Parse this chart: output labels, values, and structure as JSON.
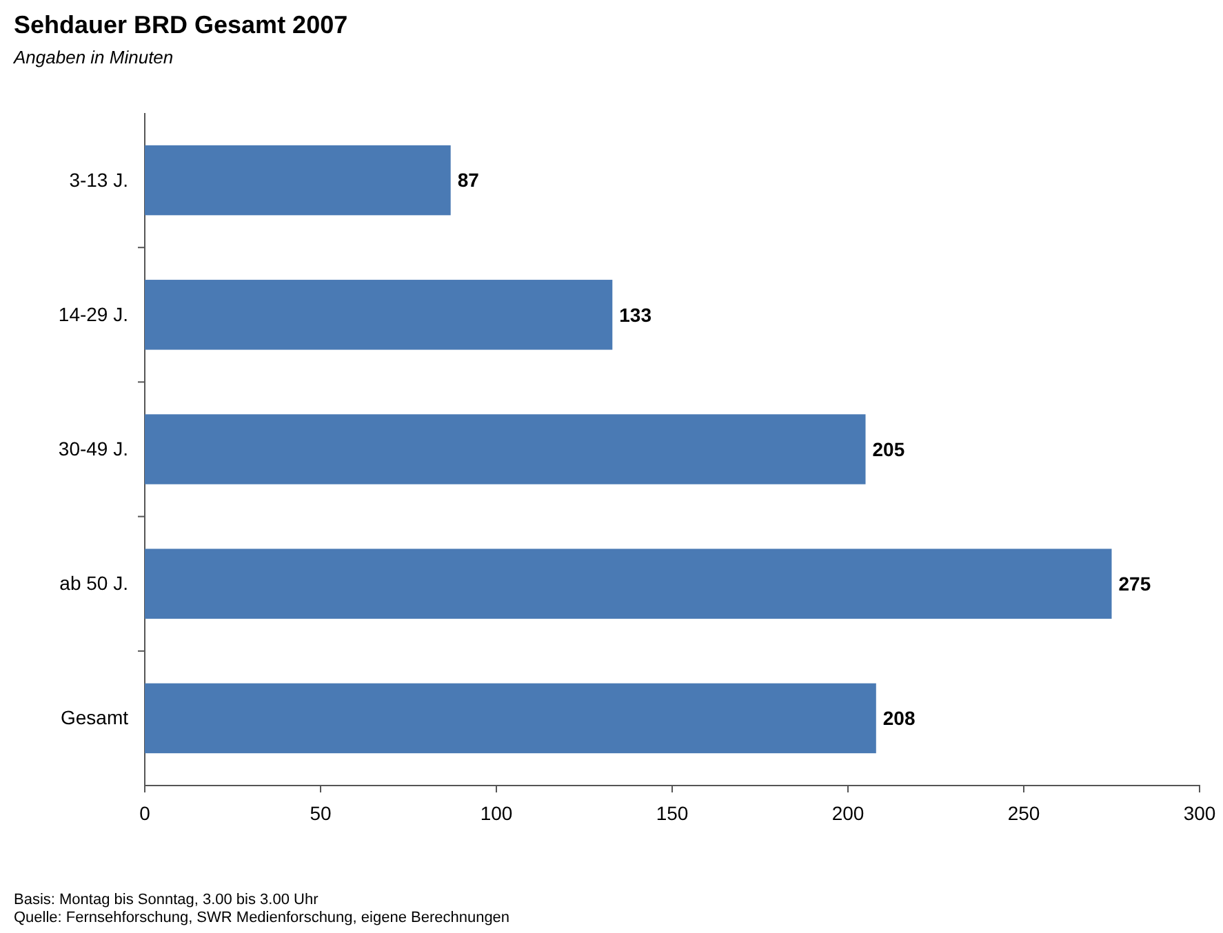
{
  "chart_data": {
    "type": "bar",
    "orientation": "horizontal",
    "title": "Sehdauer BRD Gesamt 2007",
    "subtitle": "Angaben in Minuten",
    "categories": [
      "3-13 J.",
      "14-29 J.",
      "30-49 J.",
      "ab 50 J.",
      "Gesamt"
    ],
    "values": [
      87,
      133,
      205,
      275,
      208
    ],
    "color": "#4a7ab4",
    "xlim": [
      0,
      300
    ],
    "xticks": [
      0,
      50,
      100,
      150,
      200,
      250,
      300
    ],
    "data_labels": true,
    "annotations": [
      "Basis: Montag bis Sonntag, 3.00 bis 3.00 Uhr",
      "Quelle: Fernsehforschung, SWR Medienforschung, eigene Berechnungen"
    ]
  }
}
